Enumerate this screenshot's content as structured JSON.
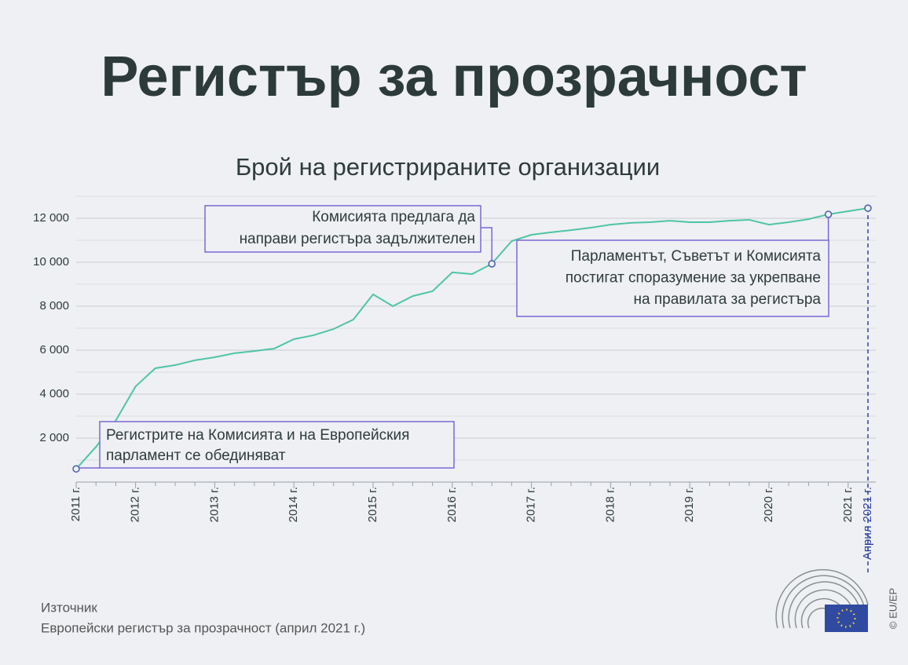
{
  "chart_data": {
    "type": "line",
    "title": "Регистър за прозрачност",
    "subtitle": "Брой на регистрираните организации",
    "categories": [
      "2011 г.",
      null,
      null,
      "2012 г.",
      null,
      null,
      null,
      "2013 г.",
      null,
      null,
      null,
      "2014 г.",
      null,
      null,
      null,
      "2015 г.",
      null,
      null,
      null,
      "2016 г.",
      null,
      null,
      null,
      "2017 г.",
      null,
      null,
      null,
      "2018 г.",
      null,
      null,
      null,
      "2019 г.",
      null,
      null,
      null,
      "2020 г.",
      null,
      null,
      null,
      "2021 г.",
      "Април 2021 г."
    ],
    "series": [
      {
        "name": "Брой на регистрираните организации",
        "color": "#4fc4a6",
        "values": [
          600,
          1600,
          2800,
          4350,
          5180,
          5320,
          5540,
          5680,
          5860,
          5960,
          6070,
          6500,
          6680,
          6960,
          7390,
          8540,
          8000,
          8460,
          8680,
          9540,
          9460,
          9930,
          10960,
          11250,
          11360,
          11460,
          11570,
          11710,
          11790,
          11820,
          11890,
          11820,
          11820,
          11890,
          11930,
          11710,
          11820,
          11960,
          12180,
          12320,
          12460
        ]
      }
    ],
    "ylim": [
      0,
      13000
    ],
    "yticks": [
      {
        "value": 2000,
        "label": "2 000"
      },
      {
        "value": 4000,
        "label": "4 000"
      },
      {
        "value": 6000,
        "label": "6 000"
      },
      {
        "value": 8000,
        "label": "8 000"
      },
      {
        "value": 10000,
        "label": "10 000"
      },
      {
        "value": 12000,
        "label": "12 000"
      }
    ],
    "y_minor_ticks": [
      1000,
      3000,
      5000,
      7000,
      9000,
      11000,
      13000
    ],
    "grid": true,
    "annotations": [
      [
        "Регистрите на Комисията и на Европейския",
        "парламент се обединяват"
      ],
      [
        "Комисията предлага да",
        "направи регистъра задължителен"
      ],
      [
        "Парламентът, Съветът и Комисията",
        "постигат споразумение за укрепване",
        "на правилата за регистъра"
      ]
    ],
    "source_label": "Източник",
    "source": "Европейски регистър за прозрачност (април 2021 г.)",
    "credit": "© EU/EP"
  }
}
